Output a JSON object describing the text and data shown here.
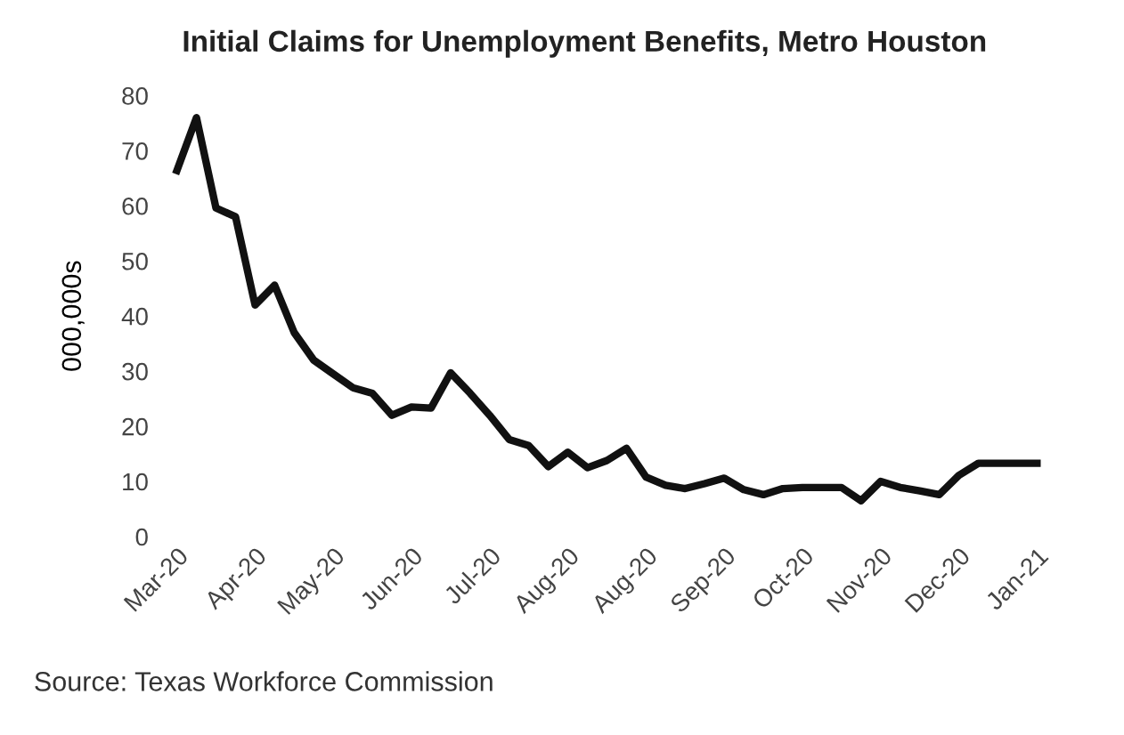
{
  "chart_data": {
    "type": "line",
    "title": "Initial Claims for Unemployment Benefits, Metro Houston",
    "ylabel": "000,000s",
    "categories": [
      "Mar-20",
      null,
      null,
      null,
      "Apr-20",
      null,
      null,
      null,
      "May-20",
      null,
      null,
      null,
      "Jun-20",
      null,
      null,
      null,
      "Jul-20",
      null,
      null,
      null,
      "Aug-20",
      null,
      null,
      null,
      "Aug-20",
      null,
      null,
      null,
      "Sep-20",
      null,
      null,
      null,
      "Oct-20",
      null,
      null,
      null,
      "Nov-20",
      null,
      null,
      null,
      "Dec-20",
      null,
      null,
      null,
      "Jan-21"
    ],
    "series": [
      {
        "color": "#111111",
        "values": [
          66.4,
          76,
          59.6,
          58,
          42,
          45.6,
          37,
          32,
          29.5,
          27,
          26,
          22,
          23.5,
          23.3,
          29.7,
          26,
          22,
          17.6,
          16.5,
          12.7,
          15.3,
          12.5,
          13.8,
          16,
          10.8,
          9.3,
          8.7,
          9.6,
          10.6,
          8.5,
          7.6,
          8.7,
          8.9,
          8.9,
          8.9,
          6.5,
          10,
          8.9,
          8.3,
          7.6,
          11.1,
          13.3,
          13.3,
          13.3,
          13.3
        ]
      }
    ],
    "ylim": [
      0,
      80
    ],
    "yticks": [
      0,
      10,
      20,
      30,
      40,
      50,
      60,
      70,
      80
    ],
    "grid": false,
    "legend": false,
    "marker": "none",
    "line_style": "solid",
    "annotations": [
      "Source: Texas Workforce Commission"
    ]
  }
}
